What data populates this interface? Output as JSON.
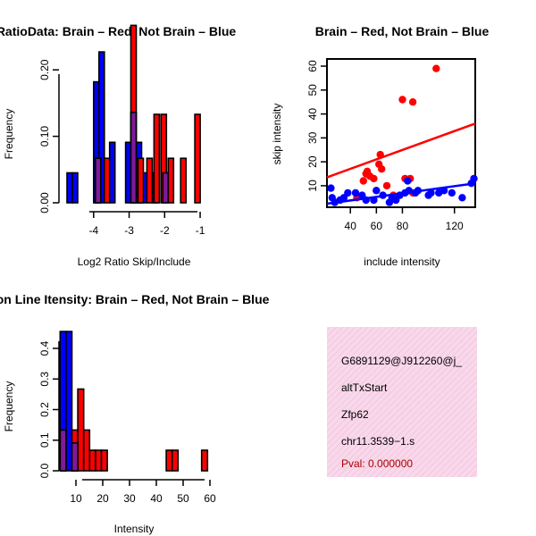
{
  "colors": {
    "brain": "#ff0000",
    "not_brain": "#0000ff",
    "overlap": "#7f1a9a",
    "info_bg": "#f8d8ea",
    "pval": "#aa0000"
  },
  "chart_data": [
    {
      "id": "ratio_hist",
      "type": "bar",
      "title": "RatioData: Brain – Red, Not Brain – Blue",
      "xlabel": "Log2 Ratio Skip/Include",
      "ylabel": "Frequency",
      "xlim": [
        -4.8,
        -0.8
      ],
      "ylim": [
        0,
        0.25
      ],
      "xticks": [
        "-4",
        "-3",
        "-2",
        "-1"
      ],
      "xtick_values": [
        -4,
        -3,
        -2,
        -1
      ],
      "yticks": [
        "0.00",
        "0.10",
        "0.20"
      ],
      "ytick_values": [
        0,
        0.1,
        0.2
      ],
      "bin_width": 0.15,
      "series": [
        {
          "name": "Not Brain",
          "bins": [
            [
              -4.75,
              0.045
            ],
            [
              -4.6,
              0.045
            ],
            [
              -4.0,
              0.182
            ],
            [
              -3.85,
              0.227
            ],
            [
              -3.55,
              0.091
            ],
            [
              -3.1,
              0.091
            ],
            [
              -2.95,
              0.136
            ],
            [
              -2.8,
              0.091
            ],
            [
              -2.65,
              0.045
            ],
            [
              -2.35,
              0.045
            ]
          ]
        },
        {
          "name": "Brain",
          "bins": [
            [
              -3.95,
              0.067
            ],
            [
              -3.7,
              0.067
            ],
            [
              -2.95,
              0.267
            ],
            [
              -2.75,
              0.067
            ],
            [
              -2.5,
              0.067
            ],
            [
              -2.3,
              0.133
            ],
            [
              -2.1,
              0.133
            ],
            [
              -1.9,
              0.067
            ],
            [
              -1.55,
              0.067
            ],
            [
              -1.15,
              0.133
            ]
          ]
        },
        {
          "name": "Overlap",
          "bins": [
            [
              -3.95,
              0.067
            ],
            [
              -2.95,
              0.136
            ],
            [
              -2.05,
              0.045
            ]
          ]
        }
      ]
    },
    {
      "id": "scatter",
      "type": "scatter",
      "title": "Brain – Red, Not Brain – Blue",
      "xlabel": "include intensity",
      "ylabel": "skip intensity",
      "xlim": [
        22,
        136
      ],
      "ylim": [
        1,
        63
      ],
      "xticks": [
        "40",
        "60",
        "80",
        "120"
      ],
      "xtick_values": [
        40,
        60,
        80,
        120
      ],
      "yticks": [
        "10",
        "20",
        "30",
        "40",
        "50",
        "60"
      ],
      "ytick_values": [
        10,
        20,
        30,
        40,
        50,
        60
      ],
      "series": [
        {
          "name": "Brain",
          "points": [
            [
              45,
              5
            ],
            [
              50,
              12
            ],
            [
              52,
              15
            ],
            [
              53,
              16
            ],
            [
              55,
              14
            ],
            [
              58,
              13
            ],
            [
              60,
              8
            ],
            [
              62,
              19
            ],
            [
              63,
              23
            ],
            [
              64,
              17
            ],
            [
              68,
              10
            ],
            [
              73,
              6
            ],
            [
              80,
              46
            ],
            [
              82,
              13
            ],
            [
              86,
              13
            ],
            [
              88,
              45
            ],
            [
              88,
              7
            ],
            [
              106,
              59
            ]
          ],
          "fit": [
            [
              22,
              13.5
            ],
            [
              136,
              36
            ]
          ]
        },
        {
          "name": "Not Brain",
          "points": [
            [
              25,
              9
            ],
            [
              26,
              5
            ],
            [
              28,
              3
            ],
            [
              32,
              4
            ],
            [
              35,
              5
            ],
            [
              38,
              7
            ],
            [
              44,
              7
            ],
            [
              49,
              6
            ],
            [
              52,
              4
            ],
            [
              58,
              4
            ],
            [
              60,
              8
            ],
            [
              65,
              6
            ],
            [
              70,
              3
            ],
            [
              72,
              5
            ],
            [
              75,
              4
            ],
            [
              78,
              6
            ],
            [
              82,
              7
            ],
            [
              84,
              12
            ],
            [
              85,
              8
            ],
            [
              90,
              7
            ],
            [
              92,
              8
            ],
            [
              100,
              6
            ],
            [
              102,
              7
            ],
            [
              108,
              7
            ],
            [
              112,
              8
            ],
            [
              118,
              7
            ],
            [
              126,
              5
            ],
            [
              133,
              11
            ],
            [
              135,
              13
            ]
          ],
          "fit": [
            [
              22,
              2.5
            ],
            [
              136,
              11
            ]
          ]
        }
      ]
    },
    {
      "id": "intensity_hist",
      "type": "bar",
      "title": "Exon Line Itensity: Brain – Red, Not Brain – Blue",
      "xlabel": "Intensity",
      "ylabel": "Frequency",
      "xlim": [
        3,
        63
      ],
      "ylim": [
        0,
        0.47
      ],
      "xticks": [
        "10",
        "20",
        "30",
        "40",
        "50",
        "60"
      ],
      "xtick_values": [
        10,
        20,
        30,
        40,
        50,
        60
      ],
      "yticks": [
        "0.0",
        "0.1",
        "0.2",
        "0.3",
        "0.4"
      ],
      "ytick_values": [
        0,
        0.1,
        0.2,
        0.3,
        0.4
      ],
      "bin_width": 2.2,
      "series": [
        {
          "name": "Not Brain",
          "bins": [
            [
              4.1,
              0.455
            ],
            [
              6.3,
              0.455
            ],
            [
              8.5,
              0.091
            ]
          ]
        },
        {
          "name": "Brain",
          "bins": [
            [
              4.1,
              0.133
            ],
            [
              8.5,
              0.133
            ],
            [
              10.7,
              0.267
            ],
            [
              12.9,
              0.133
            ],
            [
              15.1,
              0.067
            ],
            [
              17.3,
              0.067
            ],
            [
              19.5,
              0.067
            ],
            [
              43.7,
              0.067
            ],
            [
              45.9,
              0.067
            ],
            [
              56.9,
              0.067
            ]
          ]
        },
        {
          "name": "Overlap",
          "bins": [
            [
              4.1,
              0.133
            ],
            [
              8.5,
              0.091
            ]
          ]
        }
      ]
    }
  ],
  "info_box": {
    "probe_id": "G6891129@J912260@j_",
    "event_type": "altTxStart",
    "gene": "Zfp62",
    "location": "chr11.3539−1.s",
    "pval": "Pval: 0.000000"
  }
}
